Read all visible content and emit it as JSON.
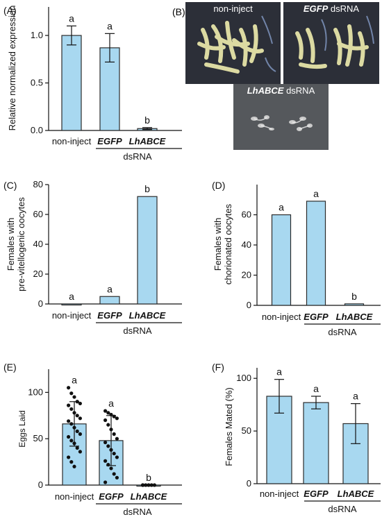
{
  "figure": {
    "common": {
      "categories": [
        "non-inject",
        "EGFP",
        "LhABCE"
      ],
      "dsrna_label": "dsRNA"
    },
    "photos": {
      "label": "(B)",
      "panels": [
        {
          "title_plain": "non-inject",
          "title_italic": ""
        },
        {
          "title_plain": " dsRNA",
          "title_italic": "EGFP"
        },
        {
          "title_plain": " dsRNA",
          "title_italic": "LhABCE"
        }
      ]
    },
    "colors": {
      "bar_fill": "#a8d8f0",
      "bar_stroke": "#2b2b2b",
      "photo_dark_bg": "#2c2f38",
      "photo_grey_bg": "#55585c",
      "oocyte_color": "#e8e8b0"
    }
  },
  "chart_data": [
    {
      "panel": "(A)",
      "type": "bar",
      "categories": [
        "non-inject",
        "EGFP",
        "LhABCE"
      ],
      "values": [
        1.0,
        0.87,
        0.02
      ],
      "errors": [
        0.1,
        0.15,
        0.01
      ],
      "letters": [
        "a",
        "a",
        "b"
      ],
      "ylabel": "Relative normalized expression",
      "ylim": [
        0,
        1.3
      ],
      "yticks": [
        "0.0",
        "0.5",
        "1.0"
      ],
      "ytick_values": [
        0,
        0.5,
        1.0
      ],
      "dsrna_label": "dsRNA"
    },
    {
      "panel": "(C)",
      "type": "bar",
      "categories": [
        "non-inject",
        "EGFP",
        "LhABCE"
      ],
      "values": [
        0,
        5,
        72
      ],
      "letters": [
        "a",
        "a",
        "b"
      ],
      "ylabel_lines": [
        "Females with",
        "pre-vitellogenic oocytes"
      ],
      "ylim": [
        0,
        80
      ],
      "yticks": [
        "0",
        "20",
        "40",
        "60",
        "80"
      ],
      "ytick_values": [
        0,
        20,
        40,
        60,
        80
      ],
      "dsrna_label": "dsRNA"
    },
    {
      "panel": "(D)",
      "type": "bar",
      "categories": [
        "non-inject",
        "EGFP",
        "LhABCE"
      ],
      "values": [
        60,
        69,
        1
      ],
      "letters": [
        "a",
        "a",
        "b"
      ],
      "ylabel_lines": [
        "Females with",
        "chorionated oocytes"
      ],
      "ylim": [
        0,
        80
      ],
      "yticks": [
        "0",
        "20",
        "40",
        "60"
      ],
      "ytick_values": [
        0,
        20,
        40,
        60
      ],
      "dsrna_label": "dsRNA"
    },
    {
      "panel": "(E)",
      "type": "bar",
      "categories": [
        "non-inject",
        "EGFP",
        "LhABCE"
      ],
      "values": [
        66,
        48,
        0
      ],
      "errors": [
        24,
        27,
        0
      ],
      "letters": [
        "a",
        "a",
        "b"
      ],
      "ylabel": "Eggs Laid",
      "ylim": [
        0,
        125
      ],
      "yticks": [
        "0",
        "50",
        "100"
      ],
      "ytick_values": [
        0,
        50,
        100
      ],
      "points": [
        [
          105,
          99,
          95,
          90,
          88,
          86,
          82,
          78,
          75,
          72,
          69,
          66,
          62,
          58,
          55,
          52,
          48,
          45,
          40,
          36,
          30,
          25,
          20
        ],
        [
          80,
          78,
          76,
          74,
          72,
          70,
          65,
          60,
          55,
          50,
          46,
          42,
          38,
          34,
          30,
          26,
          22,
          18,
          12,
          8,
          3
        ],
        [
          0,
          0,
          0,
          0,
          0,
          0
        ]
      ],
      "dsrna_label": "dsRNA"
    },
    {
      "panel": "(F)",
      "type": "bar",
      "categories": [
        "non-inject",
        "EGFP",
        "LhABCE"
      ],
      "values": [
        83,
        77,
        57
      ],
      "errors": [
        16,
        6,
        19
      ],
      "letters": [
        "a",
        "a",
        "a"
      ],
      "ylabel": "Females Mated (%)",
      "ylim": [
        0,
        110
      ],
      "yticks": [
        "0",
        "50",
        "100"
      ],
      "ytick_values": [
        0,
        50,
        100
      ],
      "dsrna_label": "dsRNA"
    }
  ]
}
